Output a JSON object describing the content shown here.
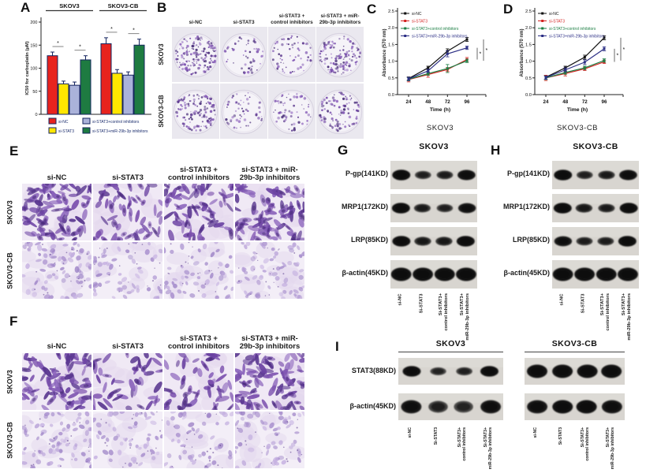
{
  "panels": {
    "A": {
      "label": "A"
    },
    "B": {
      "label": "B",
      "col_headers": [
        "si-NC",
        "si-STAT3",
        "si-STAT3 +\ncontrol inhibitors",
        "si-STAT3 + miR-\n29b-3p inhibitors"
      ],
      "row_labels": [
        "SKOV3",
        "SKOV3-CB"
      ],
      "colony_counts": [
        [
          160,
          50,
          62,
          130
        ],
        [
          130,
          55,
          60,
          100
        ]
      ]
    },
    "C": {
      "label": "C"
    },
    "D": {
      "label": "D"
    },
    "E": {
      "label": "E",
      "col_headers": [
        "si-NC",
        "si-STAT3",
        "si-STAT3 +\ncontrol inhibitors",
        "si-STAT3 + miR-\n29b-3p inhibitors"
      ],
      "row_labels": [
        "SKOV3",
        "SKOV3-CB"
      ],
      "cell_density": [
        [
          1.0,
          0.6,
          0.8,
          0.95
        ],
        [
          0.85,
          0.6,
          0.55,
          0.7
        ]
      ]
    },
    "F": {
      "label": "F",
      "col_headers": [
        "si-NC",
        "si-STAT3",
        "si-STAT3 +\ncontrol inhibitors",
        "si-STAT3 + miR-\n29b-3p inhibitors"
      ],
      "row_labels": [
        "SKOV3",
        "SKOV3-CB"
      ],
      "cell_density": [
        [
          0.95,
          0.5,
          0.55,
          1.0
        ],
        [
          0.8,
          0.55,
          0.5,
          0.65
        ]
      ]
    },
    "G": {
      "label": "G",
      "title": "SKOV3",
      "protein_rows": [
        "P-gp(141KD)",
        "MRP1(172KD)",
        "LRP(85KD)",
        "β-actin(45KD)"
      ],
      "lane_labels": [
        "si-NC",
        "Si-STAT3",
        "Si-STAT3+\ncontrol inhibitors",
        "Si-STAT3+\nmiR-29b-3p inhibitors"
      ],
      "band_intensity": [
        [
          1.0,
          0.5,
          0.55,
          0.95
        ],
        [
          1.0,
          0.6,
          0.5,
          0.9
        ],
        [
          1.0,
          0.65,
          0.65,
          1.0
        ],
        [
          1.0,
          1.0,
          1.0,
          1.0
        ]
      ]
    },
    "H": {
      "label": "H",
      "title": "SKOV3-CB",
      "protein_rows": [
        "P-gp(141KD)",
        "MRP1(172KD)",
        "LRP(85KD)",
        "β-actin(45KD)"
      ],
      "lane_labels": [
        "si-NC",
        "Si-STAT3",
        "Si-STAT3+\ncontrol inhibitors",
        "Si-STAT3+\nmiR-29b-3p inhibitors"
      ],
      "band_intensity": [
        [
          1.0,
          0.5,
          0.6,
          0.95
        ],
        [
          1.0,
          0.65,
          0.6,
          1.0
        ],
        [
          0.9,
          0.55,
          0.55,
          1.0
        ],
        [
          1.0,
          1.0,
          1.0,
          1.0
        ]
      ]
    },
    "I": {
      "label": "I",
      "protein_rows": [
        "STAT3(88KD)",
        "β-actin(45KD)"
      ],
      "lane_labels": [
        "si-NC",
        "Si-STAT3",
        "Si-STAT3+\ncontrol inhibitors",
        "Si-STAT3+\nmiR-29b-3p inhibitors"
      ],
      "groups": [
        {
          "title": "SKOV3",
          "band_intensity": [
            [
              1.0,
              0.45,
              0.5,
              1.0
            ],
            [
              0.95,
              0.5,
              0.45,
              0.95
            ]
          ]
        },
        {
          "title": "SKOV3-CB",
          "band_intensity": [
            [
              1.0,
              1.0,
              1.0,
              1.0
            ],
            [
              0.95,
              1.0,
              1.0,
              0.95
            ]
          ]
        }
      ]
    }
  },
  "chart_data": [
    {
      "id": "A",
      "type": "bar",
      "title": "",
      "ylabel": "IC50 for carboplatin (μM)",
      "ylim": [
        0,
        200
      ],
      "yticks": [
        0,
        50,
        100,
        150,
        200
      ],
      "groups": [
        "SKOV3",
        "SKOV3-CB"
      ],
      "series": [
        {
          "name": "si-NC",
          "color": "#e8231e",
          "values": [
            127,
            153
          ],
          "errors": [
            8,
            13
          ]
        },
        {
          "name": "si-STAT3",
          "color": "#ffe600",
          "values": [
            66,
            89
          ],
          "errors": [
            6,
            8
          ]
        },
        {
          "name": "si-STAT3+control inhibitors",
          "color": "#aab2da",
          "values": [
            63,
            85
          ],
          "errors": [
            7,
            7
          ]
        },
        {
          "name": "si-STAT3+miR-29b-3p inhibitors",
          "color": "#1e7b41",
          "values": [
            118,
            150
          ],
          "errors": [
            9,
            13
          ]
        }
      ],
      "significance": {
        "pairs": [
          [
            0,
            1
          ],
          [
            2,
            3
          ]
        ],
        "label": "*"
      },
      "bar_outline": "#15245f",
      "legend_text_color": "#1c2e6e"
    },
    {
      "id": "C",
      "type": "line",
      "title": "SKOV3",
      "xlabel": "Time (h)",
      "ylabel": "Absorbance (570 nm)",
      "x": [
        24,
        48,
        72,
        96
      ],
      "ylim": [
        0,
        2.5
      ],
      "yticks": [
        0,
        0.5,
        1,
        1.5,
        2,
        2.5
      ],
      "series": [
        {
          "name": "si-NC",
          "color": "#111111",
          "values": [
            0.48,
            0.8,
            1.3,
            1.65
          ],
          "errors": [
            0.05,
            0.05,
            0.07,
            0.06
          ]
        },
        {
          "name": "si-STAT3",
          "color": "#d42422",
          "values": [
            0.45,
            0.6,
            0.75,
            1.05
          ],
          "errors": [
            0.07,
            0.08,
            0.06,
            0.06
          ]
        },
        {
          "name": "si-STAT3+control inhibitors",
          "color": "#1d7f45",
          "values": [
            0.46,
            0.63,
            0.78,
            1.01
          ],
          "errors": [
            0.05,
            0.05,
            0.12,
            0.05
          ]
        },
        {
          "name": "si-STAT3+miR-29b-3p inhibitors",
          "color": "#2c2f85",
          "values": [
            0.47,
            0.71,
            1.22,
            1.4
          ],
          "errors": [
            0.05,
            0.05,
            0.09,
            0.05
          ]
        }
      ],
      "sig_labels": [
        "*",
        "*"
      ]
    },
    {
      "id": "D",
      "type": "line",
      "title": "SKOV3-CB",
      "xlabel": "Time (h)",
      "ylabel": "Absorbance (570 nm)",
      "x": [
        24,
        48,
        72,
        96
      ],
      "ylim": [
        0,
        2.5
      ],
      "yticks": [
        0,
        0.5,
        1,
        1.5,
        2,
        2.5
      ],
      "series": [
        {
          "name": "si-NC",
          "color": "#111111",
          "values": [
            0.52,
            0.8,
            1.12,
            1.7
          ],
          "errors": [
            0.06,
            0.05,
            0.06,
            0.06
          ]
        },
        {
          "name": "si-STAT3",
          "color": "#d42422",
          "values": [
            0.5,
            0.63,
            0.77,
            0.98
          ],
          "errors": [
            0.08,
            0.07,
            0.05,
            0.05
          ]
        },
        {
          "name": "si-STAT3+control inhibitors",
          "color": "#1d7f45",
          "values": [
            0.5,
            0.66,
            0.8,
            1.02
          ],
          "errors": [
            0.05,
            0.05,
            0.05,
            0.05
          ]
        },
        {
          "name": "si-STAT3+miR-29b-3p inhibitors",
          "color": "#2c2f85",
          "values": [
            0.51,
            0.74,
            0.97,
            1.37
          ],
          "errors": [
            0.05,
            0.06,
            0.07,
            0.06
          ]
        }
      ],
      "sig_labels": [
        "*",
        "*"
      ]
    }
  ]
}
